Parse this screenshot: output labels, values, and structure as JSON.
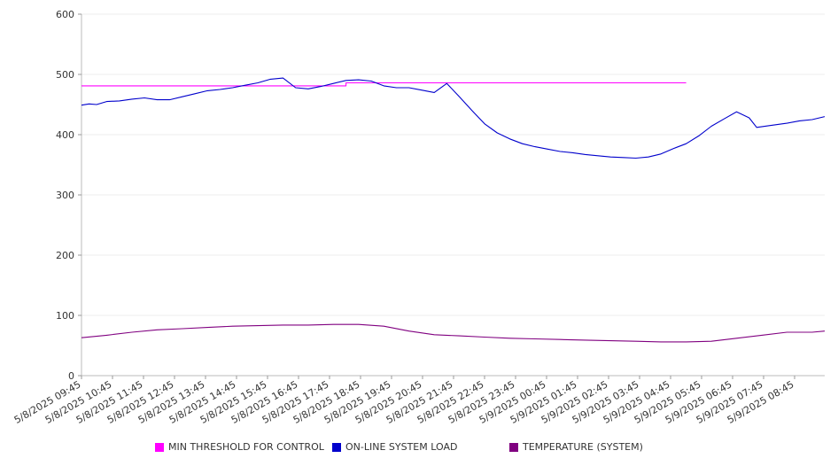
{
  "chart_data": {
    "type": "line",
    "title": "",
    "xlabel": "",
    "ylabel": "",
    "ylim": [
      0,
      600
    ],
    "yticks": [
      0,
      100,
      200,
      300,
      400,
      500,
      600
    ],
    "grid": true,
    "legend_position": "bottom",
    "x_tick_labels": [
      "5/8/2025 09:45",
      "5/8/2025 10:45",
      "5/8/2025 11:45",
      "5/8/2025 12:45",
      "5/8/2025 13:45",
      "5/8/2025 14:45",
      "5/8/2025 15:45",
      "5/8/2025 16:45",
      "5/8/2025 17:45",
      "5/8/2025 18:45",
      "5/8/2025 19:45",
      "5/8/2025 20:45",
      "5/8/2025 21:45",
      "5/8/2025 22:45",
      "5/8/2025 23:45",
      "5/9/2025 00:45",
      "5/9/2025 01:45",
      "5/9/2025 02:45",
      "5/9/2025 03:45",
      "5/9/2025 04:45",
      "5/9/2025 05:45",
      "5/9/2025 06:45",
      "5/9/2025 07:45",
      "5/9/2025 08:45"
    ],
    "series": [
      {
        "name": "MIN THRESHOLD FOR CONTROL",
        "color": "#ff00ff",
        "points": [
          [
            0,
            481
          ],
          [
            10.5,
            481
          ],
          [
            10.5,
            486
          ],
          [
            24,
            486
          ]
        ]
      },
      {
        "name": "ON-LINE SYSTEM LOAD",
        "color": "#0000cc",
        "points": [
          [
            0,
            449
          ],
          [
            0.3,
            451
          ],
          [
            0.6,
            450
          ],
          [
            1,
            455
          ],
          [
            1.5,
            456
          ],
          [
            2,
            459
          ],
          [
            2.5,
            461
          ],
          [
            3,
            458
          ],
          [
            3.5,
            458
          ],
          [
            4,
            463
          ],
          [
            4.5,
            468
          ],
          [
            5,
            473
          ],
          [
            5.5,
            475
          ],
          [
            6,
            478
          ],
          [
            6.5,
            482
          ],
          [
            7,
            486
          ],
          [
            7.5,
            492
          ],
          [
            8,
            494
          ],
          [
            8.5,
            478
          ],
          [
            9,
            476
          ],
          [
            9.5,
            480
          ],
          [
            10,
            485
          ],
          [
            10.5,
            490
          ],
          [
            11,
            491
          ],
          [
            11.5,
            489
          ],
          [
            12,
            481
          ],
          [
            12.5,
            478
          ],
          [
            13,
            478
          ],
          [
            13.5,
            474
          ],
          [
            14,
            470
          ],
          [
            14.5,
            485
          ],
          [
            15,
            463
          ],
          [
            15.5,
            440
          ],
          [
            16,
            418
          ],
          [
            16.5,
            403
          ],
          [
            17,
            393
          ],
          [
            17.5,
            385
          ],
          [
            18,
            380
          ],
          [
            18.5,
            376
          ],
          [
            19,
            372
          ],
          [
            19.5,
            370
          ],
          [
            20,
            367
          ],
          [
            20.5,
            365
          ],
          [
            21,
            363
          ],
          [
            21.5,
            362
          ],
          [
            22,
            361
          ],
          [
            22.5,
            363
          ],
          [
            23,
            368
          ],
          [
            23.5,
            377
          ],
          [
            24,
            385
          ],
          [
            24.5,
            398
          ],
          [
            25,
            414
          ],
          [
            25.5,
            426
          ],
          [
            26,
            438
          ],
          [
            26.5,
            428
          ],
          [
            26.8,
            412
          ],
          [
            27.3,
            415
          ],
          [
            28,
            419
          ],
          [
            28.5,
            423
          ],
          [
            29,
            425
          ],
          [
            29.5,
            430
          ]
        ]
      },
      {
        "name": "TEMPERATURE (SYSTEM)",
        "color": "#800080",
        "points": [
          [
            0,
            63
          ],
          [
            1,
            67
          ],
          [
            2,
            72
          ],
          [
            3,
            76
          ],
          [
            4,
            78
          ],
          [
            5,
            80
          ],
          [
            6,
            82
          ],
          [
            7,
            83
          ],
          [
            8,
            84
          ],
          [
            9,
            84
          ],
          [
            10,
            85
          ],
          [
            11,
            85
          ],
          [
            12,
            82
          ],
          [
            13,
            74
          ],
          [
            14,
            68
          ],
          [
            15,
            66
          ],
          [
            16,
            64
          ],
          [
            17,
            62
          ],
          [
            18,
            61
          ],
          [
            19,
            60
          ],
          [
            20,
            59
          ],
          [
            21,
            58
          ],
          [
            22,
            57
          ],
          [
            23,
            56
          ],
          [
            24,
            56
          ],
          [
            25,
            57
          ],
          [
            26,
            62
          ],
          [
            27,
            67
          ],
          [
            28,
            72
          ],
          [
            29,
            72
          ],
          [
            29.5,
            74
          ]
        ]
      }
    ]
  }
}
